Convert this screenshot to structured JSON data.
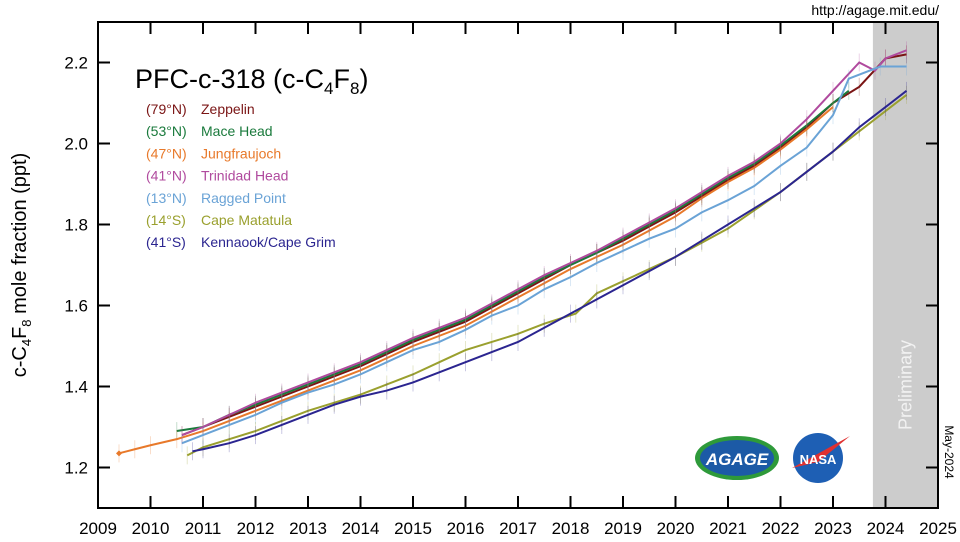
{
  "url_text": "http://agage.mit.edu/",
  "date_stamp": "May-2024",
  "preliminary_label": "Preliminary",
  "logos": [
    "AGAGE",
    "NASA"
  ],
  "chart_data": {
    "type": "line",
    "title_parts": {
      "a": "PFC-c-318 (c-C",
      "s1": "4",
      "b": "F",
      "s2": "8",
      "c": ")"
    },
    "ylabel_parts": {
      "a": "c-C",
      "s1": "4",
      "b": "F",
      "s2": "8",
      "c": " mole fraction (ppt)"
    },
    "xlim": [
      2009,
      2025
    ],
    "ylim": [
      1.1,
      2.3
    ],
    "xticks": [
      "2009",
      "2010",
      "2011",
      "2012",
      "2013",
      "2014",
      "2015",
      "2016",
      "2017",
      "2018",
      "2019",
      "2020",
      "2021",
      "2022",
      "2023",
      "2024",
      "2025"
    ],
    "yticks": [
      "1.2",
      "1.4",
      "1.6",
      "1.8",
      "2.0",
      "2.2"
    ],
    "preliminary_from": 2023.76,
    "legend_placement": "top-left",
    "series": [
      {
        "name": "Zeppelin",
        "lat": "(79°N)",
        "color": "#7a1414",
        "x": [
          2010.6,
          2011,
          2011.5,
          2012,
          2012.5,
          2013,
          2013.5,
          2014,
          2014.5,
          2015,
          2015.5,
          2016,
          2016.5,
          2017,
          2017.5,
          2018,
          2018.5,
          2019,
          2019.5,
          2020,
          2020.5,
          2021,
          2021.5,
          2022,
          2022.5,
          2023,
          2023.5,
          2024,
          2024.4
        ],
        "y": [
          1.28,
          1.3,
          1.325,
          1.35,
          1.375,
          1.4,
          1.425,
          1.45,
          1.48,
          1.51,
          1.535,
          1.56,
          1.595,
          1.63,
          1.665,
          1.7,
          1.73,
          1.76,
          1.795,
          1.83,
          1.87,
          1.91,
          1.945,
          1.99,
          2.04,
          2.1,
          2.14,
          2.21,
          2.22
        ]
      },
      {
        "name": "Mace Head",
        "lat": "(53°N)",
        "color": "#1a7a3c",
        "x": [
          2010.5,
          2011,
          2011.5,
          2012,
          2012.5,
          2013,
          2013.5,
          2014,
          2014.5,
          2015,
          2015.5,
          2016,
          2016.5,
          2017,
          2017.5,
          2018,
          2018.5,
          2019,
          2019.5,
          2020,
          2020.5,
          2021,
          2021.5,
          2022,
          2022.5,
          2023,
          2023.3
        ],
        "y": [
          1.29,
          1.3,
          1.33,
          1.355,
          1.38,
          1.405,
          1.43,
          1.455,
          1.485,
          1.515,
          1.54,
          1.565,
          1.6,
          1.635,
          1.67,
          1.7,
          1.73,
          1.765,
          1.8,
          1.835,
          1.875,
          1.915,
          1.95,
          1.995,
          2.045,
          2.1,
          2.13
        ]
      },
      {
        "name": "Jungfraujoch",
        "lat": "(47°N)",
        "color": "#e8792a",
        "x": [
          2009.4,
          2009.7,
          2010,
          2010.5,
          2011,
          2011.5,
          2012,
          2012.5,
          2013,
          2013.5,
          2014,
          2014.5,
          2015,
          2015.5,
          2016,
          2016.5,
          2017,
          2017.5,
          2018,
          2018.5,
          2019,
          2019.5,
          2020,
          2020.5,
          2021,
          2021.5,
          2022,
          2022.5,
          2023
        ],
        "y": [
          1.235,
          1.245,
          1.255,
          1.27,
          1.29,
          1.315,
          1.34,
          1.365,
          1.39,
          1.415,
          1.44,
          1.47,
          1.5,
          1.525,
          1.55,
          1.585,
          1.62,
          1.655,
          1.69,
          1.72,
          1.75,
          1.785,
          1.82,
          1.865,
          1.905,
          1.94,
          1.985,
          2.035,
          2.09
        ]
      },
      {
        "name": "Trinidad Head",
        "lat": "(41°N)",
        "color": "#b04a9e",
        "x": [
          2010.6,
          2011,
          2011.5,
          2012,
          2012.5,
          2013,
          2013.5,
          2014,
          2014.5,
          2015,
          2015.5,
          2016,
          2016.5,
          2017,
          2017.5,
          2018,
          2018.5,
          2019,
          2019.5,
          2020,
          2020.5,
          2021,
          2021.5,
          2022,
          2022.5,
          2023,
          2023.5,
          2023.8,
          2024,
          2024.4
        ],
        "y": [
          1.28,
          1.3,
          1.33,
          1.36,
          1.385,
          1.41,
          1.435,
          1.46,
          1.49,
          1.52,
          1.545,
          1.57,
          1.605,
          1.64,
          1.675,
          1.705,
          1.735,
          1.77,
          1.805,
          1.84,
          1.88,
          1.92,
          1.955,
          2.0,
          2.06,
          2.13,
          2.2,
          2.18,
          2.21,
          2.23
        ]
      },
      {
        "name": "Ragged Point",
        "lat": "(13°N)",
        "color": "#6aa3d6",
        "x": [
          2010.6,
          2011,
          2011.5,
          2012,
          2012.5,
          2013,
          2013.5,
          2014,
          2014.5,
          2015,
          2015.5,
          2016,
          2016.5,
          2017,
          2017.5,
          2018,
          2018.5,
          2019,
          2019.5,
          2020,
          2020.5,
          2021,
          2021.5,
          2022,
          2022.5,
          2023,
          2023.3,
          2023.9,
          2024.4
        ],
        "y": [
          1.26,
          1.28,
          1.305,
          1.33,
          1.36,
          1.385,
          1.405,
          1.43,
          1.46,
          1.49,
          1.51,
          1.54,
          1.575,
          1.6,
          1.64,
          1.67,
          1.705,
          1.735,
          1.765,
          1.79,
          1.83,
          1.86,
          1.895,
          1.945,
          1.99,
          2.07,
          2.16,
          2.19,
          2.19
        ]
      },
      {
        "name": "Cape Matatula",
        "lat": "(14°S)",
        "color": "#9aa02e",
        "x": [
          2010.7,
          2011,
          2011.5,
          2012,
          2012.5,
          2013,
          2013.5,
          2014,
          2014.5,
          2015,
          2015.5,
          2016,
          2016.5,
          2017,
          2017.5,
          2018.1,
          2018.5,
          2019,
          2019.5,
          2020,
          2020.5,
          2021,
          2021.5,
          2022,
          2022.5,
          2023,
          2023.5,
          2024,
          2024.4
        ],
        "y": [
          1.23,
          1.25,
          1.27,
          1.29,
          1.315,
          1.34,
          1.36,
          1.38,
          1.405,
          1.43,
          1.46,
          1.49,
          1.51,
          1.53,
          1.555,
          1.58,
          1.63,
          1.66,
          1.69,
          1.72,
          1.755,
          1.79,
          1.835,
          1.88,
          1.93,
          1.98,
          2.03,
          2.08,
          2.12
        ]
      },
      {
        "name": "Kennaook/Cape Grim",
        "lat": "(41°S)",
        "color": "#2b2590",
        "x": [
          2010.8,
          2011,
          2011.5,
          2012,
          2012.5,
          2013,
          2013.5,
          2014,
          2014.5,
          2015,
          2015.5,
          2016,
          2016.5,
          2017,
          2017.5,
          2018,
          2018.5,
          2019,
          2019.5,
          2020,
          2020.5,
          2021,
          2021.5,
          2022,
          2022.5,
          2023,
          2023.5,
          2024,
          2024.4
        ],
        "y": [
          1.24,
          1.245,
          1.26,
          1.28,
          1.305,
          1.33,
          1.355,
          1.375,
          1.39,
          1.41,
          1.435,
          1.46,
          1.485,
          1.51,
          1.545,
          1.58,
          1.615,
          1.65,
          1.685,
          1.72,
          1.76,
          1.8,
          1.84,
          1.88,
          1.93,
          1.98,
          2.04,
          2.09,
          2.13
        ]
      }
    ]
  }
}
